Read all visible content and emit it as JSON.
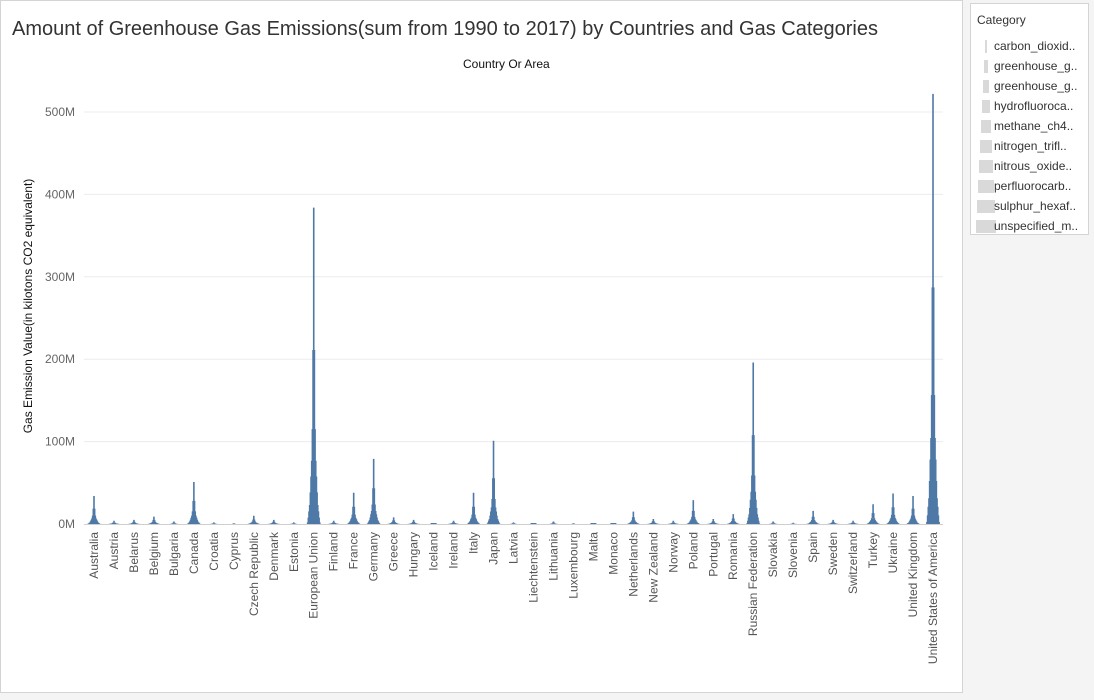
{
  "title": "Amount of Greenhouse Gas Emissions(sum from 1990 to 2017) by Countries and Gas Categories",
  "column_header": "Country Or Area",
  "legend": {
    "title": "Category",
    "items": [
      {
        "label": "carbon_dioxid.."
      },
      {
        "label": "greenhouse_g.."
      },
      {
        "label": "greenhouse_g.."
      },
      {
        "label": "hydrofluoroca.."
      },
      {
        "label": "methane_ch4.."
      },
      {
        "label": "nitrogen_trifl.."
      },
      {
        "label": "nitrous_oxide.."
      },
      {
        "label": "perfluorocarb.."
      },
      {
        "label": "sulphur_hexaf.."
      },
      {
        "label": "unspecified_m.."
      }
    ]
  },
  "colors": {
    "mark": "#4e79a7",
    "legend_swatch": "#d9d9d9",
    "grid": "#ececec"
  },
  "chart_data": {
    "type": "bar",
    "subtype": "stacked-symmetric-by-category",
    "title": "Amount of Greenhouse Gas Emissions(sum from 1990 to 2017) by Countries and Gas Categories",
    "xlabel": "Country Or Area",
    "ylabel": "Gas Emission Value(in kilotons CO2 equivalent)",
    "ylim": [
      0,
      530000000
    ],
    "yticks": [
      0,
      100000000,
      200000000,
      300000000,
      400000000,
      500000000
    ],
    "ytick_labels": [
      "0M",
      "100M",
      "200M",
      "300M",
      "400M",
      "500M"
    ],
    "grid": true,
    "legend_position": "right",
    "categories": [
      "Australia",
      "Austria",
      "Belarus",
      "Belgium",
      "Bulgaria",
      "Canada",
      "Croatia",
      "Cyprus",
      "Czech Republic",
      "Denmark",
      "Estonia",
      "European Union",
      "Finland",
      "France",
      "Germany",
      "Greece",
      "Hungary",
      "Iceland",
      "Ireland",
      "Italy",
      "Japan",
      "Latvia",
      "Liechtenstein",
      "Lithuania",
      "Luxembourg",
      "Malta",
      "Monaco",
      "Netherlands",
      "New Zealand",
      "Norway",
      "Poland",
      "Portugal",
      "Romania",
      "Russian Federation",
      "Slovakia",
      "Slovenia",
      "Spain",
      "Sweden",
      "Switzerland",
      "Turkey",
      "Ukraine",
      "United Kingdom",
      "United States of America"
    ],
    "values": [
      34000000,
      4000000,
      5000000,
      9000000,
      3000000,
      51000000,
      2000000,
      1000000,
      10000000,
      5000000,
      2000000,
      384000000,
      4000000,
      38000000,
      79000000,
      8000000,
      5000000,
      500000,
      4000000,
      38000000,
      101000000,
      2000000,
      100000,
      3000000,
      1000000,
      300000,
      50000,
      15000000,
      6000000,
      4000000,
      29000000,
      6000000,
      12000000,
      196000000,
      3000000,
      1500000,
      16000000,
      5000000,
      4000000,
      24000000,
      37000000,
      34000000,
      522000000
    ]
  }
}
